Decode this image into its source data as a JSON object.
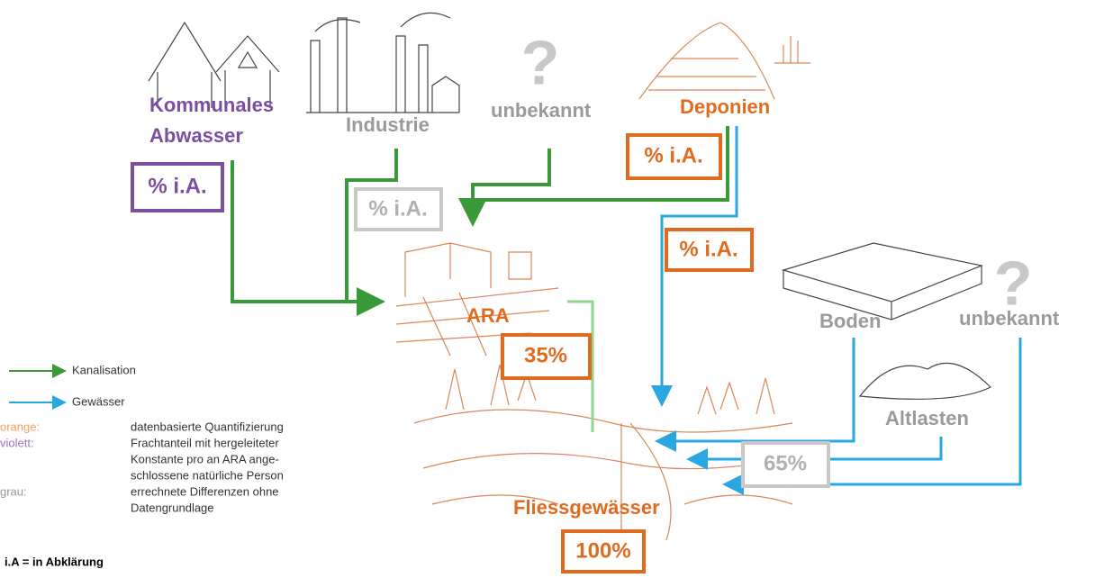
{
  "nodes": {
    "kommunal": {
      "lines": [
        "Kommunales",
        "Abwasser"
      ]
    },
    "industrie": {
      "label": "Industrie"
    },
    "unbekannt1": {
      "label": "unbekannt"
    },
    "deponien": {
      "label": "Deponien"
    },
    "ara": {
      "label": "ARA"
    },
    "boden": {
      "label": "Boden"
    },
    "unbekannt2": {
      "label": "unbekannt"
    },
    "altlasten": {
      "label": "Altlasten"
    },
    "fliess": {
      "label": "Fliessgewässer"
    }
  },
  "boxes": {
    "kommunal": "% i.A.",
    "industrie": "% i.A.",
    "deponien_kanal": "% i.A.",
    "deponien_gewaesser": "% i.A.",
    "ara": "35%",
    "diffus": "65%",
    "total": "100%"
  },
  "legend": {
    "kanalisation": "Kanalisation",
    "gewaesser": "Gewässer",
    "colors": [
      {
        "key": "orange:",
        "lines": [
          "datenbasierte Quantifizierung"
        ]
      },
      {
        "key": "violett:",
        "lines": [
          "Frachtanteil mit hergeleiteter",
          "Konstante pro an ARA ange-",
          "schlossene natürliche Person"
        ]
      },
      {
        "key": "grau:",
        "lines": [
          "errechnete Differenzen ohne",
          "Datengrundlage"
        ]
      }
    ],
    "note": "i.A = in Abklärung"
  }
}
